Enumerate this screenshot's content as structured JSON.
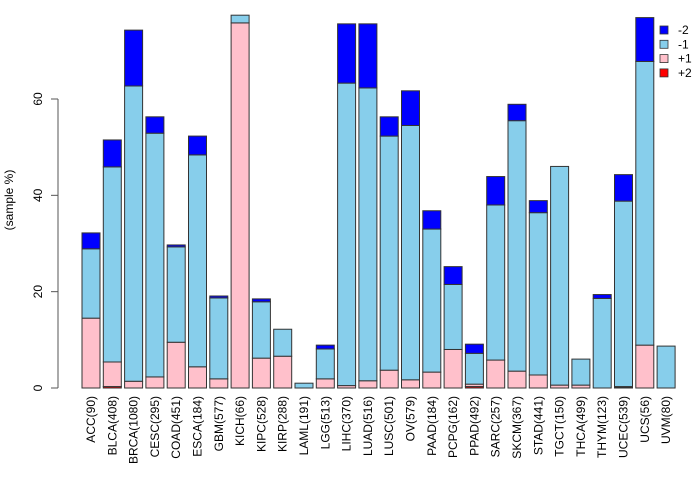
{
  "chart_data": {
    "type": "bar",
    "stacked": true,
    "title": "",
    "xlabel": "",
    "ylabel": "(sample %)",
    "ylim": [
      0,
      78
    ],
    "yticks": [
      0,
      20,
      40,
      60
    ],
    "legend_position": "top-right",
    "categories": [
      "ACC(90)",
      "BLCA(408)",
      "BRCA(1080)",
      "CESC(295)",
      "COAD(451)",
      "ESCA(184)",
      "GBM(577)",
      "KICH(66)",
      "KIPC(528)",
      "KIRP(288)",
      "LAML(191)",
      "LGG(513)",
      "LIHC(370)",
      "LUAD(516)",
      "LUSC(501)",
      "OV(579)",
      "PAAD(184)",
      "PCPG(162)",
      "PPAD(492)",
      "SARC(257)",
      "SKCM(367)",
      "STAD(441)",
      "TGCT(150)",
      "THCA(499)",
      "THYM(123)",
      "UCEC(539)",
      "UCS(56)",
      "UVM(80)"
    ],
    "series": [
      {
        "name": "+2",
        "color": "#ff0000",
        "values": [
          0,
          0.3,
          0,
          0,
          0,
          0,
          0,
          0,
          0,
          0,
          0,
          0,
          0,
          0,
          0,
          0,
          0,
          0,
          0.3,
          0,
          0,
          0,
          0,
          0,
          0,
          0.2,
          0,
          0
        ]
      },
      {
        "name": "+1",
        "color": "#ffc0cb",
        "values": [
          14.5,
          5.1,
          1.4,
          2.3,
          9.5,
          4.4,
          1.9,
          75.8,
          6.2,
          6.6,
          0,
          1.9,
          0.5,
          1.5,
          3.7,
          1.7,
          3.3,
          8.0,
          0.5,
          5.8,
          3.5,
          2.7,
          0.6,
          0.6,
          0,
          0.1,
          8.9,
          0
        ]
      },
      {
        "name": "-1",
        "color": "#87ceeb",
        "values": [
          14.4,
          40.5,
          61.3,
          50.6,
          19.8,
          44.0,
          16.8,
          1.6,
          11.7,
          5.6,
          1.0,
          6.2,
          62.8,
          60.8,
          48.6,
          52.8,
          29.7,
          13.5,
          6.4,
          32.2,
          52.0,
          33.7,
          45.4,
          5.4,
          18.6,
          38.5,
          58.9,
          8.7
        ]
      },
      {
        "name": "-2",
        "color": "#0000ff",
        "values": [
          3.3,
          5.6,
          11.6,
          3.4,
          0.4,
          3.9,
          0.4,
          0,
          0.6,
          0,
          0,
          0.8,
          12.3,
          13.3,
          4.0,
          7.2,
          3.8,
          3.7,
          1.9,
          5.9,
          3.4,
          2.5,
          0,
          0,
          0.8,
          5.5,
          9.1,
          0
        ]
      }
    ],
    "legend_order": [
      "-2",
      "-1",
      "+1",
      "+2"
    ]
  }
}
